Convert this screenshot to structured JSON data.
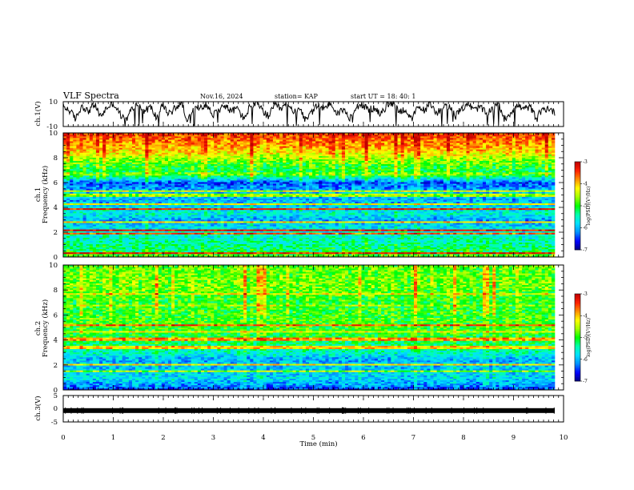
{
  "header": {
    "title": "VLF Spectra",
    "date": "Nov.16, 2024",
    "station": "station= KAP",
    "start": "start  UT  =   18: 40: 1"
  },
  "colors": {
    "background": "#ffffff",
    "axis": "#000000",
    "trace": "#000000",
    "colormap": [
      "#000080",
      "#0000ff",
      "#0090ff",
      "#00e0ff",
      "#00ffb0",
      "#00ff00",
      "#a0ff00",
      "#ffff00",
      "#ff9000",
      "#ff2000",
      "#c00000"
    ]
  },
  "chart_data": [
    {
      "name": "ch1-waveform",
      "type": "line",
      "ylabel": "ch.1(V)",
      "ylim": [
        -10,
        10
      ],
      "yticks": [
        "10",
        "-10"
      ],
      "xlim": [
        0,
        10
      ],
      "series": [
        {
          "name": "ch.1",
          "values": [
            6,
            3,
            -4,
            7,
            2,
            8,
            -2,
            5,
            9,
            1,
            -6,
            4,
            8,
            2,
            6,
            -3,
            7,
            0,
            5,
            9,
            -5,
            3,
            6,
            8,
            -1,
            4,
            7,
            2,
            5,
            -4,
            6,
            9,
            3,
            -2,
            7,
            4,
            8,
            1,
            6,
            -6,
            2,
            7,
            5,
            9,
            0,
            4,
            -3,
            6,
            8,
            3,
            5,
            -1,
            7,
            9,
            2,
            4,
            -5,
            6,
            3,
            8,
            1,
            5,
            7,
            -2,
            4,
            9,
            3,
            6,
            0,
            5,
            8,
            -4,
            2,
            7,
            4,
            6,
            -3,
            3,
            5,
            1
          ]
        }
      ]
    },
    {
      "name": "ch1-spectrogram",
      "type": "heatmap",
      "ylabel": "Frequency (kHz)",
      "ylabel_left": "ch.1",
      "ylim": [
        0,
        10
      ],
      "yticks": [
        "0",
        "2",
        "4",
        "6",
        "8",
        "10"
      ],
      "xlim": [
        0,
        10
      ],
      "colorbar": {
        "label": "log(PSD)(V²/Hz)",
        "range": [
          -7,
          -3
        ],
        "ticks": [
          "-3",
          "-4",
          "-5",
          "-6",
          "-7"
        ]
      },
      "profile_kHz": [
        0,
        0.5,
        1.5,
        2.5,
        3.0,
        3.5,
        4.5,
        5.2,
        6.0,
        6.5,
        7.5,
        8.5,
        10
      ],
      "profile_level": [
        -4.7,
        -5.2,
        -5.5,
        -5.8,
        -6.1,
        -5.6,
        -6.0,
        -5.9,
        -6.4,
        -5.3,
        -4.9,
        -4.1,
        -3.4
      ],
      "lines_kHz": [
        0.3,
        1.9,
        2.2,
        2.8,
        3.9,
        4.3,
        5.0,
        5.3,
        6.7
      ],
      "lines_level": [
        -3.3,
        -3.6,
        -3.2,
        -4.2,
        -3.4,
        -4.3,
        -4.6,
        -4.4,
        -4.8
      ]
    },
    {
      "name": "ch2-spectrogram",
      "type": "heatmap",
      "ylabel": "Frequency (kHz)",
      "ylabel_left": "ch.2",
      "ylim": [
        0,
        10
      ],
      "yticks": [
        "0",
        "2",
        "4",
        "6",
        "8",
        "10"
      ],
      "xlim": [
        0,
        10
      ],
      "colorbar": {
        "label": "log(PSD)(V²/Hz)",
        "range": [
          -7,
          -3
        ],
        "ticks": [
          "-3",
          "-4",
          "-5",
          "-6",
          "-7"
        ]
      },
      "profile_kHz": [
        0,
        0.4,
        1.0,
        1.8,
        2.5,
        3.0,
        3.8,
        4.5,
        5.5,
        7.0,
        8.5,
        10
      ],
      "profile_level": [
        -6.5,
        -6.1,
        -5.8,
        -5.9,
        -6.0,
        -5.5,
        -5.2,
        -5.0,
        -4.9,
        -5.0,
        -4.7,
        -4.8
      ],
      "lines_kHz": [
        0.6,
        1.5,
        2.0,
        3.4,
        4.1,
        4.7,
        5.2,
        6.8,
        7.7
      ],
      "lines_level": [
        -6.8,
        -4.6,
        -4.2,
        -4.1,
        -3.8,
        -4.3,
        -3.6,
        -4.5,
        -4.2
      ]
    },
    {
      "name": "ch3-waveform",
      "type": "line",
      "ylabel": "ch.3(V)",
      "ylim": [
        -5,
        5
      ],
      "yticks": [
        "5",
        "0",
        "-5"
      ],
      "xlim": [
        0,
        10
      ],
      "series": [
        {
          "name": "ch.3",
          "values": [
            -0.7,
            -0.7
          ]
        }
      ],
      "xlabel": "Time (min)",
      "xticks": [
        "0",
        "1",
        "2",
        "3",
        "4",
        "5",
        "6",
        "7",
        "8",
        "9",
        "10"
      ]
    }
  ]
}
